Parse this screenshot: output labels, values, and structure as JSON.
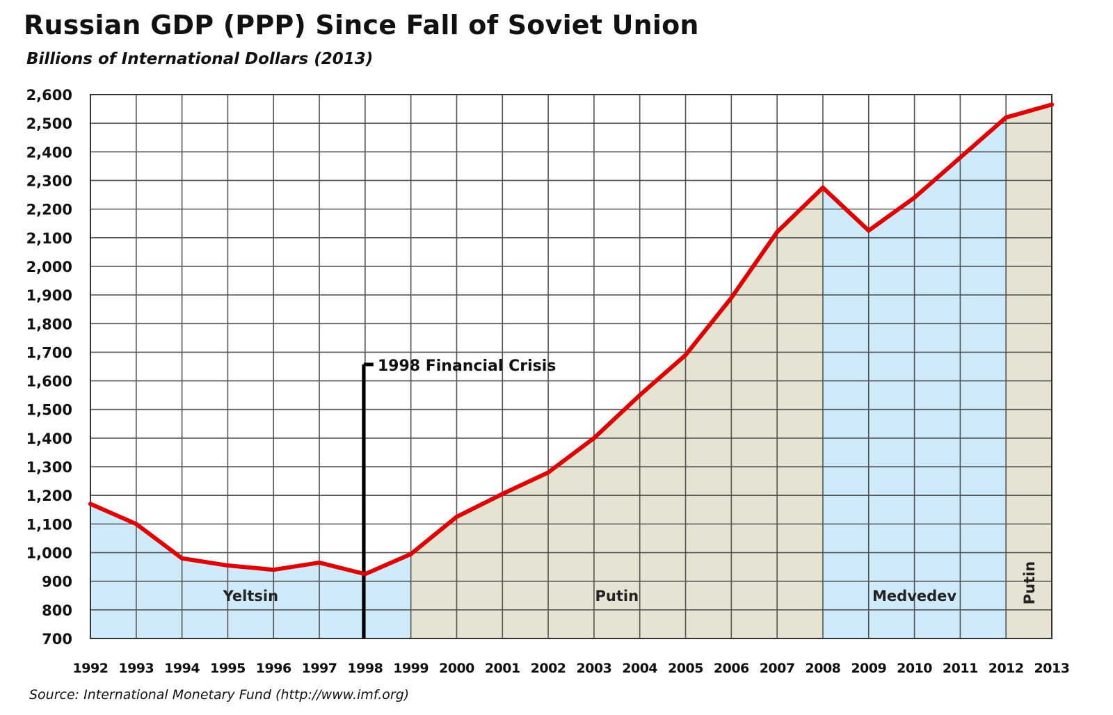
{
  "chart_data": {
    "type": "line",
    "title": "Russian GDP (PPP) Since Fall of Soviet Union",
    "subtitle": "Billions of International Dollars (2013)",
    "source": "Source: International Monetary Fund (http://www.imf.org)",
    "x": [
      "1992",
      "1993",
      "1994",
      "1995",
      "1996",
      "1997",
      "1998",
      "1999",
      "2000",
      "2001",
      "2002",
      "2003",
      "2004",
      "2005",
      "2006",
      "2007",
      "2008",
      "2009",
      "2010",
      "2011",
      "2012",
      "2013"
    ],
    "series": [
      {
        "values": [
          1170,
          1100,
          980,
          955,
          940,
          965,
          925,
          995,
          1125,
          1205,
          1280,
          1400,
          1550,
          1690,
          1890,
          2120,
          2275,
          2125,
          2240,
          2380,
          2520,
          2565
        ]
      }
    ],
    "ylim": [
      700,
      2600
    ],
    "yticks": [
      "700",
      "800",
      "900",
      "1,000",
      "1,100",
      "1,200",
      "1,300",
      "1,400",
      "1,500",
      "1,600",
      "1,700",
      "1,800",
      "1,900",
      "2,000",
      "2,100",
      "2,200",
      "2,300",
      "2,400",
      "2,500",
      "2,600"
    ],
    "grid": true,
    "line_color": "#e00000",
    "eras": [
      {
        "label": "Yeltsin",
        "from": "1992",
        "to": "1999",
        "color": "#cfeafa"
      },
      {
        "label": "Putin",
        "from": "1999",
        "to": "2008",
        "color": "#e6e3d2"
      },
      {
        "label": "Medvedev",
        "from": "2008",
        "to": "2012",
        "color": "#cfeafa"
      },
      {
        "label": "Putin",
        "from": "2012",
        "to": "2013",
        "color": "#e6e3d2"
      }
    ],
    "annotation": {
      "label": "1998 Financial Crisis",
      "x": "1998"
    }
  }
}
